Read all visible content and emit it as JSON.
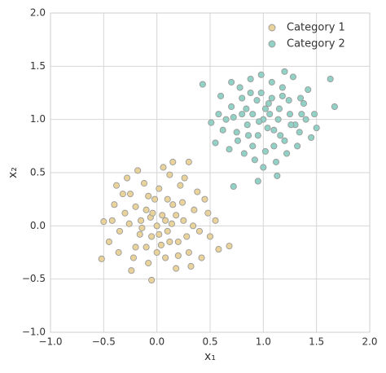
{
  "chart_data": {
    "type": "scatter",
    "xlabel": "x₁",
    "ylabel": "x₂",
    "xlim": [
      -1,
      2
    ],
    "ylim": [
      -1,
      2
    ],
    "xticks": [
      {
        "value": -1,
        "label": "−1.0"
      },
      {
        "value": -0.5,
        "label": "−0.5"
      },
      {
        "value": 0,
        "label": "0.0"
      },
      0.5,
      {
        "value": 1,
        "label": "1.0"
      },
      1.5,
      {
        "value": 2,
        "label": "2.0"
      }
    ],
    "yticks": [
      {
        "value": -1,
        "label": "−1.0"
      },
      {
        "value": -0.5,
        "label": "−0.5"
      },
      {
        "value": 0,
        "label": "0.0"
      },
      0.5,
      {
        "value": 1,
        "label": "1.0"
      },
      1.5,
      {
        "value": 2,
        "label": "2.0"
      }
    ],
    "grid": true,
    "legend": "upper right",
    "series": [
      {
        "name": "Category 1",
        "color": "#e9d39b",
        "x": [
          -0.52,
          -0.5,
          0.68,
          -0.05,
          0.3,
          0.15,
          -0.35,
          -0.3,
          -0.25,
          -0.2,
          -0.15,
          -0.1,
          -0.05,
          0.0,
          0.05,
          0.1,
          0.15,
          0.2,
          0.25,
          0.3,
          0.35,
          0.4,
          -0.4,
          -0.45,
          -0.12,
          0.02,
          0.08,
          -0.08,
          0.18,
          -0.22,
          0.45,
          0.5,
          0.55,
          -0.28,
          -0.18,
          0.12,
          0.22,
          -0.02,
          -0.06,
          0.04,
          0.14,
          0.24,
          -0.16,
          -0.26,
          -0.36,
          0.32,
          0.26,
          0.06,
          -0.1,
          0.0,
          0.1,
          -0.2,
          0.38,
          0.42,
          -0.32,
          -0.42,
          0.28,
          0.18,
          -0.04,
          0.08,
          -0.14,
          0.02,
          0.12,
          -0.08,
          0.2,
          -0.24,
          0.34,
          0.48,
          -0.38,
          0.58
        ],
        "y": [
          -0.31,
          0.04,
          -0.19,
          -0.51,
          0.6,
          0.6,
          -0.05,
          0.12,
          0.3,
          -0.2,
          0.05,
          0.15,
          -0.1,
          0.0,
          0.1,
          -0.05,
          0.2,
          -0.15,
          0.05,
          -0.25,
          0.15,
          -0.05,
          0.2,
          -0.15,
          0.4,
          0.35,
          -0.3,
          -0.35,
          -0.4,
          -0.3,
          0.25,
          -0.1,
          0.05,
          0.45,
          0.52,
          0.48,
          0.38,
          0.25,
          0.08,
          -0.18,
          0.02,
          0.22,
          -0.08,
          0.02,
          -0.25,
          -0.38,
          0.45,
          0.55,
          -0.2,
          -0.25,
          0.25,
          0.18,
          0.32,
          -0.3,
          0.3,
          0.05,
          -0.1,
          0.1,
          0.12,
          0.05,
          -0.02,
          -0.08,
          -0.15,
          0.28,
          -0.28,
          -0.42,
          0.0,
          0.12,
          0.38,
          -0.22
        ]
      },
      {
        "name": "Category 2",
        "color": "#92d1c5",
        "x": [
          0.43,
          0.72,
          1.63,
          1.67,
          0.51,
          0.55,
          1.45,
          1.13,
          0.95,
          0.65,
          0.7,
          0.75,
          0.8,
          0.85,
          0.9,
          0.95,
          1.0,
          1.05,
          1.1,
          1.15,
          1.2,
          1.25,
          1.3,
          1.35,
          1.4,
          0.6,
          0.68,
          0.78,
          0.88,
          0.98,
          1.08,
          1.18,
          1.28,
          1.38,
          1.48,
          1.5,
          0.82,
          0.92,
          1.02,
          1.12,
          1.22,
          1.32,
          0.62,
          0.72,
          0.84,
          0.94,
          1.04,
          1.14,
          1.24,
          1.34,
          0.76,
          0.86,
          0.96,
          1.06,
          1.16,
          1.26,
          0.98,
          1.08,
          0.88,
          1.18,
          1.42,
          0.58,
          1.0,
          1.1,
          0.9,
          1.2,
          0.7,
          1.36,
          1.02,
          0.8
        ],
        "y": [
          1.33,
          0.37,
          1.38,
          1.12,
          0.97,
          0.78,
          0.83,
          0.47,
          0.42,
          1.0,
          1.12,
          0.88,
          1.2,
          0.95,
          1.05,
          0.85,
          1.0,
          1.15,
          0.9,
          1.1,
          0.8,
          1.05,
          0.95,
          1.2,
          1.0,
          1.22,
          0.72,
          1.3,
          1.38,
          1.42,
          1.35,
          1.3,
          1.4,
          1.15,
          1.05,
          0.92,
          0.68,
          0.62,
          0.7,
          0.6,
          0.68,
          0.75,
          0.9,
          1.02,
          1.1,
          1.18,
          0.92,
          1.0,
          1.18,
          0.88,
          0.8,
          0.85,
          0.98,
          1.05,
          0.85,
          0.95,
          1.25,
          1.2,
          1.25,
          1.22,
          1.28,
          1.05,
          0.55,
          0.75,
          0.75,
          1.45,
          1.35,
          1.05,
          1.1,
          1.05
        ]
      }
    ]
  }
}
